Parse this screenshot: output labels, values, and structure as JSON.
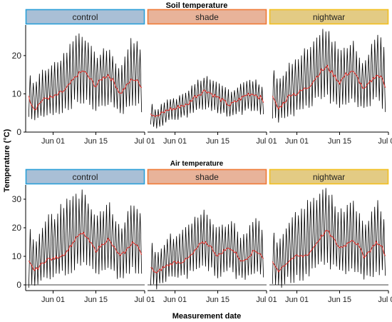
{
  "figure": {
    "ylabel": "Temperature (°C)",
    "xlabel": "Measurement date",
    "colors": {
      "series_raw": "#000000",
      "series_mean": "#e8201a",
      "control_strip_fill": "#a9bfd6",
      "control_strip_border": "#2a9fd8",
      "shade_strip_fill": "#e8b39a",
      "shade_strip_border": "#f07a36",
      "nightwar_strip_fill": "#e3cb84",
      "nightwar_strip_border": "#f2bf1f"
    }
  },
  "chart_data": [
    {
      "type": "line",
      "title": "Soil temperature",
      "panels": [
        "control",
        "shade",
        "nightwar"
      ],
      "x_ticks": [
        "Jun 01",
        "Jun 15",
        "Jul 01"
      ],
      "x_tick_dates": [
        "2021-06-01",
        "2021-06-15",
        "2021-07-01"
      ],
      "xlim": [
        "2021-05-23",
        "2021-07-01"
      ],
      "y_ticks": [
        "0",
        "10",
        "20"
      ],
      "ylim": [
        0,
        28
      ],
      "series": [
        {
          "panel": "control",
          "dates": [
            "2021-05-24",
            "2021-05-26",
            "2021-05-28",
            "2021-05-30",
            "2021-06-01",
            "2021-06-03",
            "2021-06-05",
            "2021-06-07",
            "2021-06-09",
            "2021-06-11",
            "2021-06-13",
            "2021-06-15",
            "2021-06-17",
            "2021-06-19",
            "2021-06-21",
            "2021-06-23",
            "2021-06-25",
            "2021-06-27",
            "2021-06-29",
            "2021-06-30"
          ],
          "mean": [
            9,
            6,
            8,
            9,
            9,
            10,
            11,
            13,
            15,
            16,
            14,
            12,
            14,
            15,
            13,
            10,
            12,
            14,
            13,
            12
          ],
          "daily_min": [
            4,
            3,
            4,
            5,
            5,
            5,
            6,
            7,
            8,
            8,
            7,
            6,
            7,
            8,
            7,
            5,
            6,
            7,
            7,
            6
          ],
          "daily_max": [
            17,
            13,
            16,
            18,
            18,
            20,
            21,
            24,
            26,
            26,
            24,
            21,
            22,
            23,
            20,
            17,
            22,
            26,
            24,
            21
          ]
        },
        {
          "panel": "shade",
          "dates": [
            "2021-05-24",
            "2021-05-26",
            "2021-05-28",
            "2021-05-30",
            "2021-06-01",
            "2021-06-03",
            "2021-06-05",
            "2021-06-07",
            "2021-06-09",
            "2021-06-11",
            "2021-06-13",
            "2021-06-15",
            "2021-06-17",
            "2021-06-19",
            "2021-06-21",
            "2021-06-23",
            "2021-06-25",
            "2021-06-27",
            "2021-06-29",
            "2021-06-30"
          ],
          "mean": [
            5,
            4,
            5,
            6,
            6,
            7,
            7,
            9,
            10,
            11,
            10,
            9,
            8,
            7,
            8,
            9,
            10,
            10,
            9,
            8
          ],
          "daily_min": [
            2,
            1,
            2,
            3,
            3,
            4,
            4,
            5,
            6,
            6,
            6,
            5,
            5,
            4,
            5,
            5,
            6,
            6,
            5,
            5
          ],
          "daily_max": [
            8,
            6,
            8,
            9,
            9,
            10,
            11,
            13,
            14,
            15,
            14,
            13,
            12,
            11,
            12,
            13,
            14,
            14,
            13,
            12
          ]
        },
        {
          "panel": "nightwar",
          "dates": [
            "2021-05-24",
            "2021-05-26",
            "2021-05-28",
            "2021-05-30",
            "2021-06-01",
            "2021-06-03",
            "2021-06-05",
            "2021-06-07",
            "2021-06-09",
            "2021-06-11",
            "2021-06-13",
            "2021-06-15",
            "2021-06-17",
            "2021-06-19",
            "2021-06-21",
            "2021-06-23",
            "2021-06-25",
            "2021-06-27",
            "2021-06-29",
            "2021-06-30"
          ],
          "mean": [
            9,
            6,
            8,
            10,
            10,
            11,
            12,
            14,
            16,
            17,
            15,
            13,
            15,
            16,
            14,
            11,
            13,
            15,
            14,
            12
          ],
          "daily_min": [
            4,
            3,
            4,
            5,
            5,
            6,
            6,
            8,
            9,
            9,
            8,
            7,
            8,
            8,
            7,
            6,
            7,
            8,
            7,
            6
          ],
          "daily_max": [
            18,
            14,
            17,
            19,
            20,
            22,
            23,
            25,
            27,
            28,
            25,
            22,
            23,
            25,
            22,
            18,
            23,
            27,
            25,
            22
          ]
        }
      ]
    },
    {
      "type": "line",
      "title": "Air temperature",
      "panels": [
        "control",
        "shade",
        "nightwar"
      ],
      "x_ticks": [
        "Jun 01",
        "Jun 15",
        "Jul 01"
      ],
      "x_tick_dates": [
        "2021-06-01",
        "2021-06-15",
        "2021-07-01"
      ],
      "xlim": [
        "2021-05-23",
        "2021-07-01"
      ],
      "y_ticks": [
        "0",
        "10",
        "20",
        "30"
      ],
      "ylim": [
        -2,
        35
      ],
      "series": [
        {
          "panel": "control",
          "dates": [
            "2021-05-24",
            "2021-05-26",
            "2021-05-28",
            "2021-05-30",
            "2021-06-01",
            "2021-06-03",
            "2021-06-05",
            "2021-06-07",
            "2021-06-09",
            "2021-06-11",
            "2021-06-13",
            "2021-06-15",
            "2021-06-17",
            "2021-06-19",
            "2021-06-21",
            "2021-06-23",
            "2021-06-25",
            "2021-06-27",
            "2021-06-29",
            "2021-06-30"
          ],
          "mean": [
            8,
            5,
            7,
            9,
            9,
            10,
            11,
            14,
            17,
            18,
            15,
            12,
            14,
            16,
            13,
            10,
            12,
            15,
            13,
            11
          ],
          "daily_min": [
            0,
            -1,
            1,
            2,
            2,
            3,
            4,
            5,
            7,
            8,
            6,
            4,
            5,
            6,
            4,
            2,
            3,
            5,
            4,
            3
          ],
          "daily_max": [
            22,
            15,
            21,
            25,
            25,
            28,
            30,
            32,
            33,
            34,
            30,
            26,
            28,
            30,
            26,
            21,
            25,
            31,
            27,
            24
          ]
        },
        {
          "panel": "shade",
          "dates": [
            "2021-05-24",
            "2021-05-26",
            "2021-05-28",
            "2021-05-30",
            "2021-06-01",
            "2021-06-03",
            "2021-06-05",
            "2021-06-07",
            "2021-06-09",
            "2021-06-11",
            "2021-06-13",
            "2021-06-15",
            "2021-06-17",
            "2021-06-19",
            "2021-06-21",
            "2021-06-23",
            "2021-06-25",
            "2021-06-27",
            "2021-06-29",
            "2021-06-30"
          ],
          "mean": [
            6,
            4,
            6,
            7,
            8,
            8,
            9,
            11,
            14,
            15,
            13,
            10,
            12,
            13,
            11,
            8,
            10,
            12,
            11,
            9
          ],
          "daily_min": [
            0,
            -1,
            1,
            2,
            2,
            3,
            3,
            5,
            6,
            7,
            5,
            3,
            4,
            5,
            3,
            2,
            3,
            4,
            3,
            2
          ],
          "daily_max": [
            16,
            12,
            15,
            18,
            18,
            20,
            22,
            24,
            26,
            27,
            24,
            20,
            22,
            24,
            21,
            17,
            20,
            24,
            22,
            19
          ]
        },
        {
          "panel": "nightwar",
          "dates": [
            "2021-05-24",
            "2021-05-26",
            "2021-05-28",
            "2021-05-30",
            "2021-06-01",
            "2021-06-03",
            "2021-06-05",
            "2021-06-07",
            "2021-06-09",
            "2021-06-11",
            "2021-06-13",
            "2021-06-15",
            "2021-06-17",
            "2021-06-19",
            "2021-06-21",
            "2021-06-23",
            "2021-06-25",
            "2021-06-27",
            "2021-06-29",
            "2021-06-30"
          ],
          "mean": [
            8,
            5,
            7,
            9,
            10,
            10,
            11,
            14,
            17,
            19,
            16,
            13,
            14,
            16,
            14,
            10,
            12,
            15,
            13,
            10
          ],
          "daily_min": [
            0,
            -1,
            1,
            2,
            2,
            3,
            4,
            6,
            7,
            8,
            6,
            4,
            5,
            6,
            4,
            2,
            3,
            5,
            4,
            2
          ],
          "daily_max": [
            22,
            15,
            21,
            25,
            27,
            29,
            30,
            32,
            34,
            35,
            31,
            27,
            28,
            31,
            27,
            22,
            25,
            31,
            27,
            22
          ]
        }
      ]
    }
  ]
}
